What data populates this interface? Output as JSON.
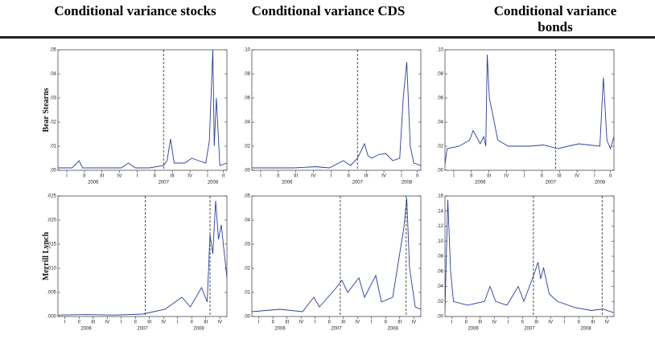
{
  "column_titles": [
    "Conditional variance stocks",
    "Conditional variance CDS",
    "Conditional variance bonds"
  ],
  "row_titles": [
    "Bear Stearns",
    "Merrill Lynch"
  ],
  "chart_data": [
    {
      "type": "line",
      "color": "#2b3d98",
      "x": [
        2006.0,
        2006.1,
        2006.2,
        2006.3,
        2006.35,
        2006.5,
        2006.7,
        2006.9,
        2007.0,
        2007.1,
        2007.3,
        2007.5,
        2007.55,
        2007.6,
        2007.65,
        2007.8,
        2007.9,
        2008.0,
        2008.1,
        2008.15,
        2008.2,
        2008.22,
        2008.25,
        2008.3,
        2008.4
      ],
      "values": [
        0.001,
        0.001,
        0.001,
        0.004,
        0.001,
        0.001,
        0.001,
        0.001,
        0.003,
        0.001,
        0.001,
        0.002,
        0.004,
        0.013,
        0.003,
        0.003,
        0.005,
        0.004,
        0.003,
        0.012,
        0.05,
        0.01,
        0.03,
        0.002,
        0.003
      ],
      "xlim": [
        2006,
        2008.4
      ],
      "ylim": [
        0,
        0.05
      ],
      "yticks": [
        {
          "value": 0,
          "label": ".00"
        },
        {
          "value": 0.01,
          "label": ".01"
        },
        {
          "value": 0.02,
          "label": ".02"
        },
        {
          "value": 0.03,
          "label": ".03"
        },
        {
          "value": 0.04,
          "label": ".04"
        },
        {
          "value": 0.05,
          "label": ".05"
        }
      ],
      "xticks": [
        {
          "value": 2006.125,
          "label": "I"
        },
        {
          "value": 2006.375,
          "label": "II"
        },
        {
          "value": 2006.625,
          "label": "III"
        },
        {
          "value": 2006.875,
          "label": "IV"
        },
        {
          "value": 2007.125,
          "label": "I"
        },
        {
          "value": 2007.375,
          "label": "II"
        },
        {
          "value": 2007.625,
          "label": "III"
        },
        {
          "value": 2007.875,
          "label": "IV"
        },
        {
          "value": 2008.125,
          "label": "I"
        },
        {
          "value": 2008.35,
          "label": "II"
        }
      ],
      "year_ticks": [
        {
          "value": 2006.5,
          "label": "2006"
        },
        {
          "value": 2007.5,
          "label": "2007"
        },
        {
          "value": 2008.2,
          "label": "2008"
        }
      ],
      "vlines": [
        2007.5
      ]
    },
    {
      "type": "line",
      "color": "#2b3d98",
      "x": [
        2006.0,
        2006.3,
        2006.6,
        2006.9,
        2007.1,
        2007.3,
        2007.4,
        2007.5,
        2007.6,
        2007.65,
        2007.7,
        2007.8,
        2007.9,
        2008.0,
        2008.1,
        2008.15,
        2008.2,
        2008.25,
        2008.3,
        2008.4
      ],
      "values": [
        0.002,
        0.002,
        0.002,
        0.003,
        0.002,
        0.008,
        0.004,
        0.01,
        0.022,
        0.012,
        0.01,
        0.013,
        0.014,
        0.008,
        0.01,
        0.06,
        0.09,
        0.02,
        0.006,
        0.004
      ],
      "xlim": [
        2006,
        2008.4
      ],
      "ylim": [
        0,
        0.1
      ],
      "yticks": [
        {
          "value": 0,
          "label": ".00"
        },
        {
          "value": 0.02,
          "label": ".02"
        },
        {
          "value": 0.04,
          "label": ".04"
        },
        {
          "value": 0.06,
          "label": ".06"
        },
        {
          "value": 0.08,
          "label": ".08"
        },
        {
          "value": 0.1,
          "label": ".10"
        }
      ],
      "xticks": [
        {
          "value": 2006.125,
          "label": "I"
        },
        {
          "value": 2006.375,
          "label": "II"
        },
        {
          "value": 2006.625,
          "label": "III"
        },
        {
          "value": 2006.875,
          "label": "IV"
        },
        {
          "value": 2007.125,
          "label": "I"
        },
        {
          "value": 2007.375,
          "label": "II"
        },
        {
          "value": 2007.625,
          "label": "III"
        },
        {
          "value": 2007.875,
          "label": "IV"
        },
        {
          "value": 2008.125,
          "label": "I"
        },
        {
          "value": 2008.35,
          "label": "II"
        }
      ],
      "year_ticks": [
        {
          "value": 2006.5,
          "label": "2006"
        },
        {
          "value": 2007.5,
          "label": "2007"
        },
        {
          "value": 2008.2,
          "label": "2008"
        }
      ],
      "vlines": [
        2007.5
      ]
    },
    {
      "type": "line",
      "color": "#2b3d98",
      "x": [
        2006.0,
        2006.03,
        2006.2,
        2006.35,
        2006.4,
        2006.5,
        2006.55,
        2006.58,
        2006.6,
        2006.63,
        2006.7,
        2006.75,
        2006.9,
        2007.2,
        2007.4,
        2007.6,
        2007.9,
        2008.2,
        2008.23,
        2008.25,
        2008.3,
        2008.35,
        2008.4
      ],
      "values": [
        0.005,
        0.018,
        0.02,
        0.025,
        0.033,
        0.022,
        0.028,
        0.02,
        0.096,
        0.06,
        0.04,
        0.025,
        0.02,
        0.02,
        0.021,
        0.018,
        0.022,
        0.02,
        0.055,
        0.077,
        0.025,
        0.018,
        0.028
      ],
      "xlim": [
        2006,
        2008.4
      ],
      "ylim": [
        0,
        0.1
      ],
      "yticks": [
        {
          "value": 0,
          "label": ".00"
        },
        {
          "value": 0.02,
          "label": ".02"
        },
        {
          "value": 0.04,
          "label": ".04"
        },
        {
          "value": 0.06,
          "label": ".06"
        },
        {
          "value": 0.08,
          "label": ".08"
        },
        {
          "value": 0.1,
          "label": ".10"
        }
      ],
      "xticks": [
        {
          "value": 2006.125,
          "label": "I"
        },
        {
          "value": 2006.375,
          "label": "II"
        },
        {
          "value": 2006.625,
          "label": "III"
        },
        {
          "value": 2006.875,
          "label": "IV"
        },
        {
          "value": 2007.125,
          "label": "I"
        },
        {
          "value": 2007.375,
          "label": "II"
        },
        {
          "value": 2007.625,
          "label": "III"
        },
        {
          "value": 2007.875,
          "label": "IV"
        },
        {
          "value": 2008.125,
          "label": "I"
        },
        {
          "value": 2008.35,
          "label": "II"
        }
      ],
      "year_ticks": [
        {
          "value": 2006.5,
          "label": "2006"
        },
        {
          "value": 2007.5,
          "label": "2007"
        },
        {
          "value": 2008.2,
          "label": "2008"
        }
      ],
      "vlines": [
        2007.57
      ]
    },
    {
      "type": "line",
      "color": "#2b3d98",
      "x": [
        2006.0,
        2006.5,
        2007.0,
        2007.5,
        2007.7,
        2007.9,
        2008.2,
        2008.35,
        2008.55,
        2008.65,
        2008.7,
        2008.75,
        2008.8,
        2008.85,
        2008.9,
        2009.0
      ],
      "values": [
        0.0003,
        0.0004,
        0.0003,
        0.0005,
        0.001,
        0.0015,
        0.004,
        0.002,
        0.006,
        0.003,
        0.017,
        0.013,
        0.024,
        0.016,
        0.019,
        0.008
      ],
      "xlim": [
        2006,
        2009
      ],
      "ylim": [
        0,
        0.025
      ],
      "yticks": [
        {
          "value": 0,
          "label": ".000"
        },
        {
          "value": 0.005,
          "label": ".005"
        },
        {
          "value": 0.01,
          "label": ".010"
        },
        {
          "value": 0.015,
          "label": ".015"
        },
        {
          "value": 0.02,
          "label": ".020"
        },
        {
          "value": 0.025,
          "label": ".025"
        }
      ],
      "xticks": [
        {
          "value": 2006.125,
          "label": "I"
        },
        {
          "value": 2006.375,
          "label": "II"
        },
        {
          "value": 2006.625,
          "label": "III"
        },
        {
          "value": 2006.875,
          "label": "IV"
        },
        {
          "value": 2007.125,
          "label": "I"
        },
        {
          "value": 2007.375,
          "label": "II"
        },
        {
          "value": 2007.625,
          "label": "III"
        },
        {
          "value": 2007.875,
          "label": "IV"
        },
        {
          "value": 2008.125,
          "label": "I"
        },
        {
          "value": 2008.375,
          "label": "II"
        },
        {
          "value": 2008.625,
          "label": "III"
        },
        {
          "value": 2008.875,
          "label": "IV"
        }
      ],
      "year_ticks": [
        {
          "value": 2006.5,
          "label": "2006"
        },
        {
          "value": 2007.5,
          "label": "2007"
        },
        {
          "value": 2008.5,
          "label": "2008"
        }
      ],
      "vlines": [
        2007.55,
        2008.7
      ]
    },
    {
      "type": "line",
      "color": "#2b3d98",
      "x": [
        2006.0,
        2006.5,
        2006.9,
        2007.1,
        2007.2,
        2007.5,
        2007.6,
        2007.7,
        2007.9,
        2008.0,
        2008.2,
        2008.3,
        2008.5,
        2008.7,
        2008.75,
        2008.8,
        2008.9,
        2009.0
      ],
      "values": [
        0.002,
        0.003,
        0.002,
        0.008,
        0.004,
        0.012,
        0.015,
        0.01,
        0.016,
        0.008,
        0.017,
        0.006,
        0.008,
        0.037,
        0.049,
        0.02,
        0.004,
        0.003
      ],
      "xlim": [
        2006,
        2009
      ],
      "ylim": [
        0,
        0.05
      ],
      "yticks": [
        {
          "value": 0,
          "label": ".00"
        },
        {
          "value": 0.01,
          "label": ".01"
        },
        {
          "value": 0.02,
          "label": ".02"
        },
        {
          "value": 0.03,
          "label": ".03"
        },
        {
          "value": 0.04,
          "label": ".04"
        },
        {
          "value": 0.05,
          "label": ".05"
        }
      ],
      "xticks": [
        {
          "value": 2006.125,
          "label": "I"
        },
        {
          "value": 2006.375,
          "label": "II"
        },
        {
          "value": 2006.625,
          "label": "III"
        },
        {
          "value": 2006.875,
          "label": "IV"
        },
        {
          "value": 2007.125,
          "label": "I"
        },
        {
          "value": 2007.375,
          "label": "II"
        },
        {
          "value": 2007.625,
          "label": "III"
        },
        {
          "value": 2007.875,
          "label": "IV"
        },
        {
          "value": 2008.125,
          "label": "I"
        },
        {
          "value": 2008.375,
          "label": "II"
        },
        {
          "value": 2008.625,
          "label": "III"
        },
        {
          "value": 2008.875,
          "label": "IV"
        }
      ],
      "year_ticks": [
        {
          "value": 2006.5,
          "label": "2006"
        },
        {
          "value": 2007.5,
          "label": "2007"
        },
        {
          "value": 2008.5,
          "label": "2008"
        }
      ],
      "vlines": [
        2007.57,
        2008.74
      ]
    },
    {
      "type": "line",
      "color": "#2b3d98",
      "x": [
        2006.0,
        2006.05,
        2006.1,
        2006.15,
        2006.4,
        2006.7,
        2006.8,
        2006.9,
        2007.1,
        2007.3,
        2007.4,
        2007.6,
        2007.65,
        2007.7,
        2007.75,
        2007.85,
        2008.0,
        2008.3,
        2008.6,
        2008.8,
        2009.0
      ],
      "values": [
        0.01,
        0.155,
        0.06,
        0.02,
        0.015,
        0.02,
        0.04,
        0.02,
        0.015,
        0.04,
        0.02,
        0.06,
        0.072,
        0.05,
        0.065,
        0.03,
        0.02,
        0.012,
        0.008,
        0.01,
        0.005
      ],
      "xlim": [
        2006,
        2009
      ],
      "ylim": [
        0,
        0.16
      ],
      "yticks": [
        {
          "value": 0,
          "label": ".00"
        },
        {
          "value": 0.02,
          "label": ".02"
        },
        {
          "value": 0.04,
          "label": ".04"
        },
        {
          "value": 0.06,
          "label": ".06"
        },
        {
          "value": 0.08,
          "label": ".08"
        },
        {
          "value": 0.1,
          "label": ".10"
        },
        {
          "value": 0.12,
          "label": ".12"
        },
        {
          "value": 0.14,
          "label": ".14"
        },
        {
          "value": 0.16,
          "label": ".16"
        }
      ],
      "xticks": [
        {
          "value": 2006.125,
          "label": "I"
        },
        {
          "value": 2006.375,
          "label": "II"
        },
        {
          "value": 2006.625,
          "label": "III"
        },
        {
          "value": 2006.875,
          "label": "IV"
        },
        {
          "value": 2007.125,
          "label": "I"
        },
        {
          "value": 2007.375,
          "label": "II"
        },
        {
          "value": 2007.625,
          "label": "III"
        },
        {
          "value": 2007.875,
          "label": "IV"
        },
        {
          "value": 2008.125,
          "label": "I"
        },
        {
          "value": 2008.375,
          "label": "II"
        },
        {
          "value": 2008.625,
          "label": "III"
        },
        {
          "value": 2008.875,
          "label": "IV"
        }
      ],
      "year_ticks": [
        {
          "value": 2006.5,
          "label": "2006"
        },
        {
          "value": 2007.5,
          "label": "2007"
        },
        {
          "value": 2008.5,
          "label": "2008"
        }
      ],
      "vlines": [
        2007.57,
        2008.79
      ]
    }
  ]
}
